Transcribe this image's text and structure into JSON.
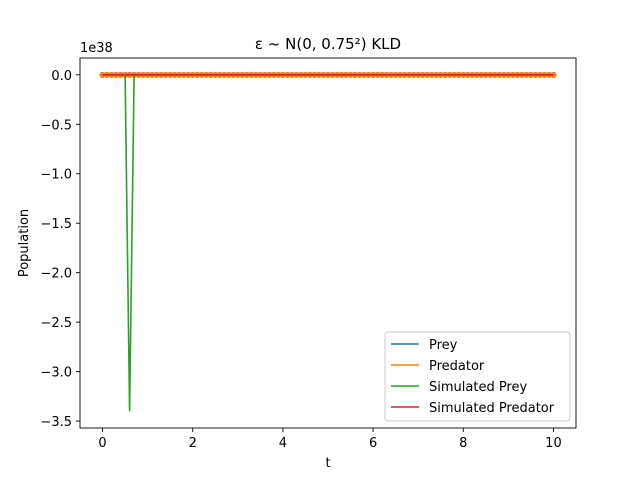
{
  "chart_data": {
    "type": "line",
    "title": "ε ~ N(0, 0.75²) KLD",
    "xlabel": "t",
    "ylabel": "Population",
    "offset_text": "1e38",
    "xlim": [
      -0.5,
      10.5
    ],
    "ylim": [
      -3.57,
      0.17
    ],
    "xticks": [
      0,
      2,
      4,
      6,
      8,
      10
    ],
    "xtick_labels": [
      "0",
      "2",
      "4",
      "6",
      "8",
      "10"
    ],
    "yticks": [
      0.0,
      -0.5,
      -1.0,
      -1.5,
      -2.0,
      -2.5,
      -3.0,
      -3.5
    ],
    "ytick_labels": [
      "0.0",
      "−0.5",
      "−1.0",
      "−1.5",
      "−2.0",
      "−2.5",
      "−3.0",
      "−3.5"
    ],
    "y_multiplier": "1e38",
    "grid": false,
    "legend_position": "bottom-right",
    "colors": {
      "prey": "#1f77b4",
      "predator": "#ff7f0e",
      "simulated_prey": "#2ca02c",
      "simulated_predator": "#d62728"
    },
    "series": [
      {
        "name": "Prey",
        "color": "#1f77b4",
        "markers": true,
        "x": [
          0,
          10
        ],
        "y": [
          0,
          0
        ]
      },
      {
        "name": "Predator",
        "color": "#ff7f0e",
        "markers": true,
        "x": [
          0,
          10
        ],
        "y": [
          0,
          0
        ]
      },
      {
        "name": "Simulated Prey",
        "color": "#2ca02c",
        "markers": false,
        "x": [
          0,
          0.5,
          0.6,
          0.7,
          10
        ],
        "y": [
          0,
          0,
          -3.4,
          0,
          0
        ]
      },
      {
        "name": "Simulated Predator",
        "color": "#d62728",
        "markers": false,
        "x": [
          0,
          10
        ],
        "y": [
          0,
          0
        ]
      }
    ]
  }
}
